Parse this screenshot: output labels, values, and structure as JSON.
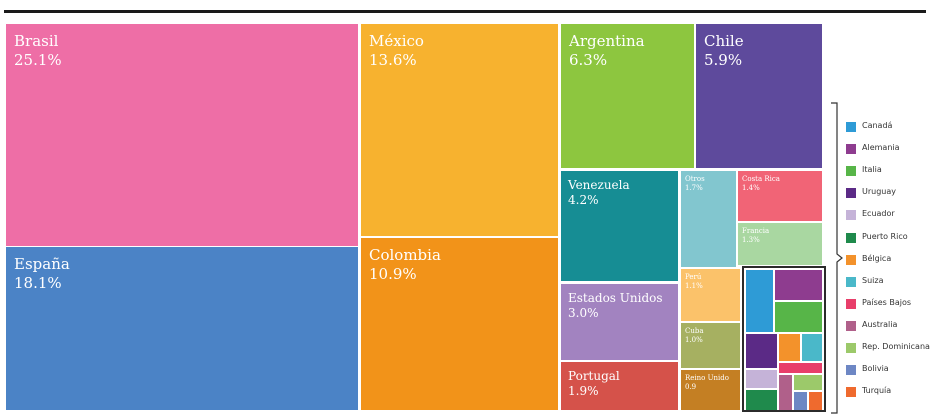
{
  "chart_data": {
    "type": "treemap",
    "title": "",
    "unit": "%",
    "series": [
      {
        "name": "Brasil",
        "value": 25.1,
        "label": "25.1%",
        "color": "#ee6ea6"
      },
      {
        "name": "España",
        "value": 18.1,
        "label": "18.1%",
        "color": "#4b83c6"
      },
      {
        "name": "México",
        "value": 13.6,
        "label": "13.6%",
        "color": "#f7b22f"
      },
      {
        "name": "Colombia",
        "value": 10.9,
        "label": "10.9%",
        "color": "#f29319"
      },
      {
        "name": "Argentina",
        "value": 6.3,
        "label": "6.3%",
        "color": "#8dc63f"
      },
      {
        "name": "Chile",
        "value": 5.9,
        "label": "5.9%",
        "color": "#5e4a9c"
      },
      {
        "name": "Venezuela",
        "value": 4.2,
        "label": "4.2%",
        "color": "#168d94"
      },
      {
        "name": "Estados Unidos",
        "value": 3.0,
        "label": "3.0%",
        "color": "#a283c0"
      },
      {
        "name": "Portugal",
        "value": 1.9,
        "label": "1.9%",
        "color": "#d5524a"
      },
      {
        "name": "Otros",
        "value": 1.7,
        "label": "1.7%",
        "color": "#82c6cf"
      },
      {
        "name": "Costa Rica",
        "value": 1.4,
        "label": "1.4%",
        "color": "#f16476"
      },
      {
        "name": "Francia",
        "value": 1.3,
        "label": "1.3%",
        "color": "#a9d7a1"
      },
      {
        "name": "Perú",
        "value": 1.1,
        "label": "1.1%",
        "color": "#fbc26a"
      },
      {
        "name": "Cuba",
        "value": 1.0,
        "label": "1.0%",
        "color": "#a6b061"
      },
      {
        "name": "Reino Unido",
        "value": 0.9,
        "label": "0.9",
        "color": "#c47f23"
      }
    ],
    "legend": {
      "placement": "right",
      "items": [
        {
          "name": "Canadá",
          "color": "#2e9bd6"
        },
        {
          "name": "Alemania",
          "color": "#8e3c8f"
        },
        {
          "name": "Italia",
          "color": "#57b548"
        },
        {
          "name": "Uruguay",
          "color": "#5b2a86"
        },
        {
          "name": "Ecuador",
          "color": "#c5b3d8"
        },
        {
          "name": "Puerto Rico",
          "color": "#1f8a4c"
        },
        {
          "name": "Bélgica",
          "color": "#f3922b"
        },
        {
          "name": "Suiza",
          "color": "#4ab8c9"
        },
        {
          "name": "Países Bajos",
          "color": "#e83e6a"
        },
        {
          "name": "Australia",
          "color": "#b0608a"
        },
        {
          "name": "Rep. Dominicana",
          "color": "#9cc96a"
        },
        {
          "name": "Bolivia",
          "color": "#6d87c4"
        },
        {
          "name": "Turquía",
          "color": "#ef6a2e"
        }
      ]
    }
  }
}
